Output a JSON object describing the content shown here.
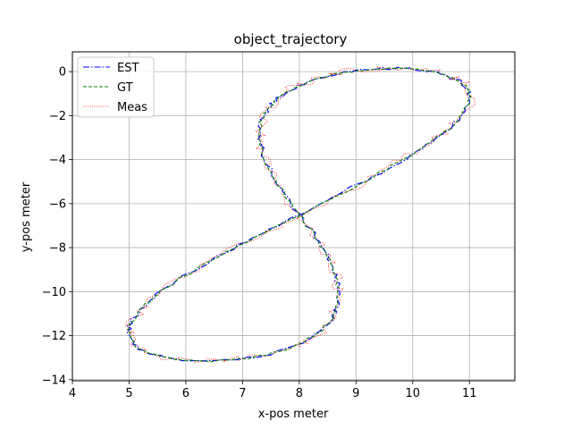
{
  "chart_data": {
    "type": "line",
    "title": "object_trajectory",
    "xlabel": "x-pos meter",
    "ylabel": "y-pos meter",
    "xlim": [
      4.0,
      11.8
    ],
    "ylim": [
      -14.05,
      0.9
    ],
    "xticks": [
      4,
      5,
      6,
      7,
      8,
      9,
      10,
      11
    ],
    "yticks": [
      0,
      -2,
      -4,
      -6,
      -8,
      -10,
      -12,
      -14
    ],
    "grid": true,
    "legend_position": "top-left",
    "trajectory_model": {
      "shape": "figure-eight",
      "center": [
        8.0,
        -6.5
      ],
      "x_amplitude": 3.5,
      "y_amplitude": 6.7,
      "samples": 240
    },
    "series": [
      {
        "name": "EST",
        "color": "#0000ff",
        "style": "dashdot"
      },
      {
        "name": "GT",
        "color": "#008000",
        "style": "dashed"
      },
      {
        "name": "Meas",
        "color": "#ff0000",
        "style": "dotted"
      }
    ]
  }
}
